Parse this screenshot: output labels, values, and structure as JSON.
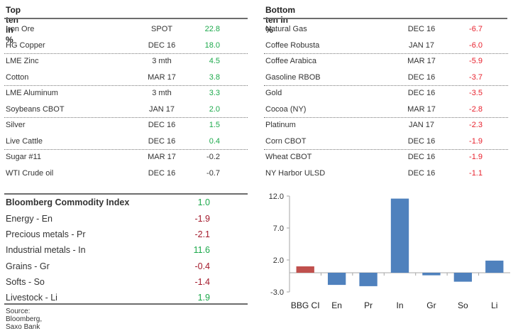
{
  "top_ten": {
    "title": "Top ten in %",
    "rows": [
      {
        "name": "Iron Ore",
        "expiry": "SPOT",
        "value": "22.8",
        "sign": "pos"
      },
      {
        "name": "HG Copper",
        "expiry": "DEC 16",
        "value": "18.0",
        "sign": "pos"
      },
      {
        "name": "LME Zinc",
        "expiry": "3 mth",
        "value": "4.5",
        "sign": "pos"
      },
      {
        "name": "Cotton",
        "expiry": "MAR 17",
        "value": "3.8",
        "sign": "pos"
      },
      {
        "name": "LME Aluminum",
        "expiry": "3 mth",
        "value": "3.3",
        "sign": "pos"
      },
      {
        "name": "Soybeans CBOT",
        "expiry": "JAN 17",
        "value": "2.0",
        "sign": "pos"
      },
      {
        "name": "Silver",
        "expiry": "DEC 16",
        "value": "1.5",
        "sign": "pos"
      },
      {
        "name": "Live Cattle",
        "expiry": "DEC 16",
        "value": "0.4",
        "sign": "pos"
      },
      {
        "name": "Sugar #11",
        "expiry": "MAR 17",
        "value": "-0.2",
        "sign": "neu"
      },
      {
        "name": "WTI Crude oil",
        "expiry": "DEC 16",
        "value": "-0.7",
        "sign": "neu"
      }
    ]
  },
  "bottom_ten": {
    "title": "Bottom ten in %",
    "rows": [
      {
        "name": "Natural Gas",
        "expiry": "DEC 16",
        "value": "-6.7",
        "sign": "neg"
      },
      {
        "name": "Coffee Robusta",
        "expiry": "JAN 17",
        "value": "-6.0",
        "sign": "neg"
      },
      {
        "name": "Coffee Arabica",
        "expiry": "MAR 17",
        "value": "-5.9",
        "sign": "neg"
      },
      {
        "name": "Gasoline RBOB",
        "expiry": "DEC 16",
        "value": "-3.7",
        "sign": "neg"
      },
      {
        "name": "Gold",
        "expiry": "DEC 16",
        "value": "-3.5",
        "sign": "neg"
      },
      {
        "name": "Cocoa (NY)",
        "expiry": "MAR 17",
        "value": "-2.8",
        "sign": "neg"
      },
      {
        "name": "Platinum",
        "expiry": "JAN 17",
        "value": "-2.3",
        "sign": "neg"
      },
      {
        "name": "Corn CBOT",
        "expiry": "DEC 16",
        "value": "-1.9",
        "sign": "neg"
      },
      {
        "name": "Wheat CBOT",
        "expiry": "DEC 16",
        "value": "-1.9",
        "sign": "neg"
      },
      {
        "name": "NY Harbor ULSD",
        "expiry": "DEC 16",
        "value": "-1.1",
        "sign": "neg"
      }
    ]
  },
  "index_table": {
    "title": "Bloomberg Commodity Index",
    "title_value": "1.0",
    "rows": [
      {
        "name": "Energy - En",
        "value": "-1.9",
        "sign": "neg"
      },
      {
        "name": "Precious metals - Pr",
        "value": "-2.1",
        "sign": "neg"
      },
      {
        "name": "Industrial metals - In",
        "value": "11.6",
        "sign": "pos"
      },
      {
        "name": "Grains - Gr",
        "value": "-0.4",
        "sign": "neg"
      },
      {
        "name": "Softs - So",
        "value": "-1.4",
        "sign": "neg"
      },
      {
        "name": "Livestock - Li",
        "value": "1.9",
        "sign": "pos"
      }
    ]
  },
  "source": "Source: Bloomberg, Saxo Bank",
  "colors": {
    "positive": "#1ca94b",
    "negative": "#e8212d",
    "index_negative": "#a3192b",
    "bar_primary": "#4f81bd",
    "bar_highlight": "#c0504d",
    "axis": "#a6a6a6"
  },
  "chart_data": {
    "type": "bar",
    "title": "",
    "xlabel": "",
    "ylabel": "",
    "categories": [
      "BBG CI",
      "En",
      "Pr",
      "In",
      "Gr",
      "So",
      "Li"
    ],
    "values": [
      1.0,
      -1.9,
      -2.1,
      11.6,
      -0.4,
      -1.4,
      1.9
    ],
    "highlight_index": 0,
    "ylim": [
      -3.0,
      12.0
    ],
    "yticks": [
      -3.0,
      2.0,
      7.0,
      12.0
    ],
    "ytick_labels": [
      "-3.0",
      "2.0",
      "7.0",
      "12.0"
    ],
    "grid": false,
    "legend": "none"
  }
}
